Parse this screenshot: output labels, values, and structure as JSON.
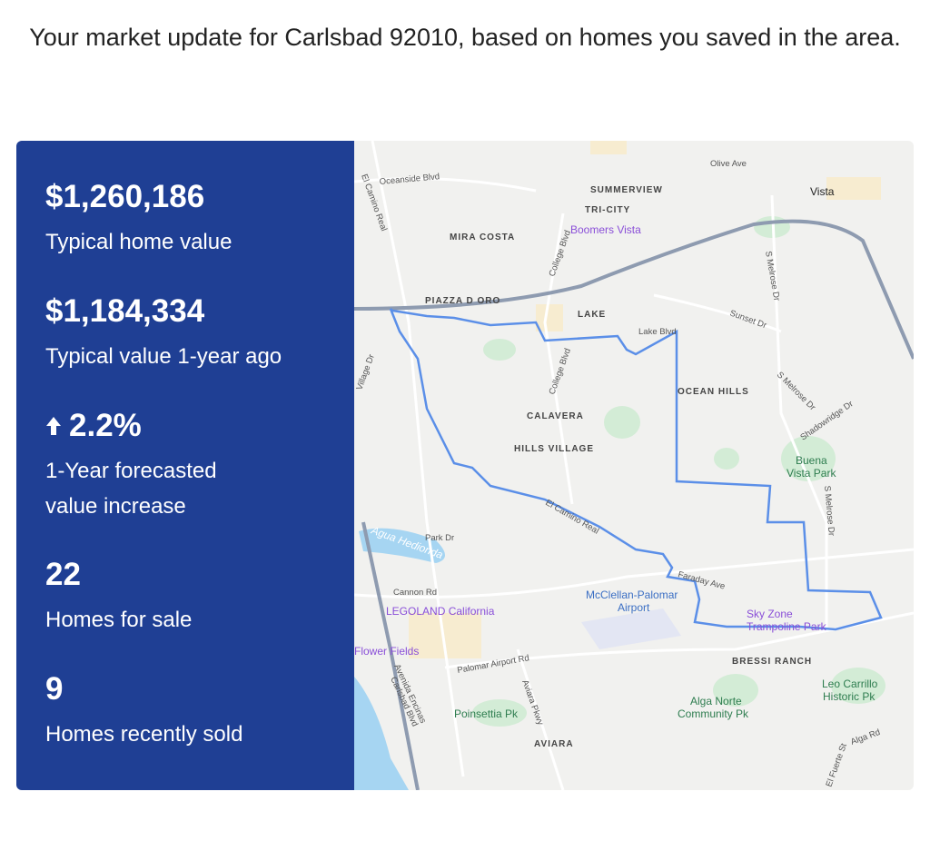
{
  "header": {
    "title": "Your market update for Carlsbad 92010, based on homes you saved in the area."
  },
  "stats": [
    {
      "value": "$1,260,186",
      "label": "Typical home value"
    },
    {
      "value": "$1,184,334",
      "label": "Typical value 1-year ago"
    },
    {
      "value": "2.2%",
      "label": "1-Year forecasted value increase"
    },
    {
      "value": "22",
      "label": "Homes for sale"
    },
    {
      "value": "9",
      "label": "Homes recently sold"
    }
  ],
  "map": {
    "labels": [
      "Oceanside Blvd",
      "El Camino Real",
      "SUMMERVIEW",
      "TRI-CITY",
      "Vista",
      "MIRA COSTA",
      "Boomers Vista",
      "College Blvd",
      "Olive Ave",
      "PIAZZA D ORO",
      "LAKE",
      "Lake Blvd",
      "Sunset Dr",
      "S Melrose Dr",
      "OCEAN HILLS",
      "Village Dr",
      "College Blvd",
      "CALAVERA",
      "HILLS VILLAGE",
      "S Melrose Dr",
      "Shadowridge Dr",
      "Buena",
      "Vista Park",
      "S Melrose Dr",
      "Agua Hedionda",
      "Park Dr",
      "El Camino Real",
      "Cannon Rd",
      "Faraday Ave",
      "McClellan-Palomar",
      "Airport",
      "LEGOLAND California",
      "Sky Zone",
      "Trampoline Park",
      "Flower Fields",
      "Palomar Airport Rd",
      "BRESSI RANCH",
      "Avenida Encinas",
      "Carlsbad Blvd",
      "Aviara Pkwy",
      "Poinsettia Pk",
      "Alga Norte",
      "Community Pk",
      "Leo Carrillo",
      "Historic Pk",
      "AVIARA",
      "Alga Rd",
      "El Fuerte St"
    ]
  }
}
